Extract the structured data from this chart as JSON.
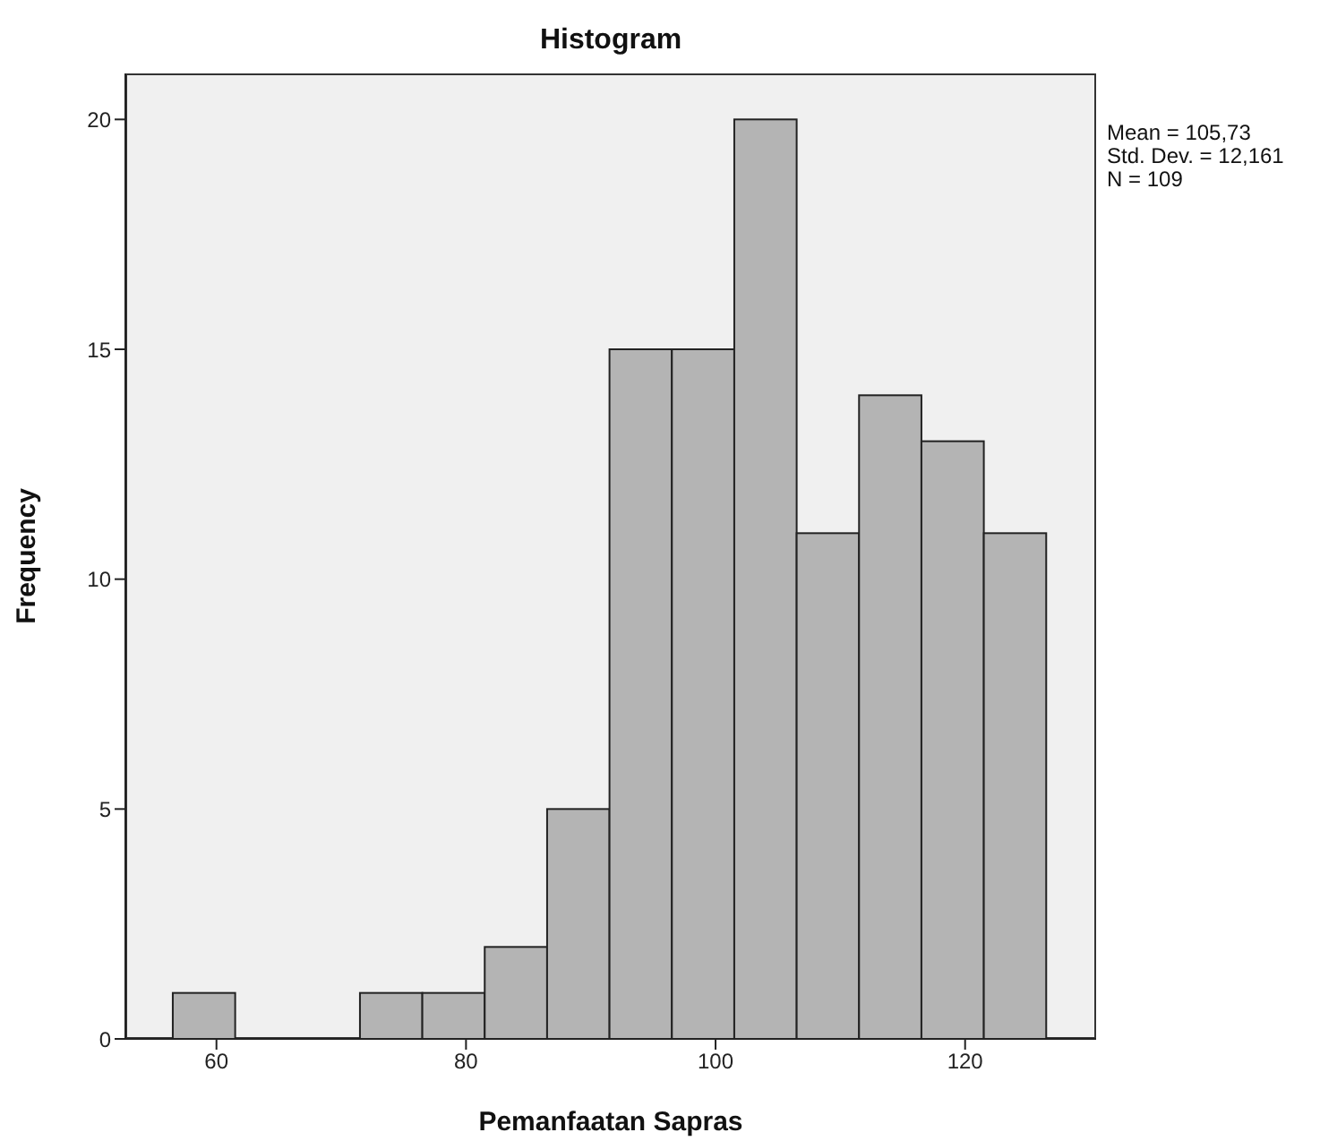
{
  "chart_data": {
    "type": "histogram",
    "title": "Histogram",
    "xlabel": "Pemanfaatan Sapras",
    "ylabel": "Frequency",
    "bins": [
      56.5,
      61.5,
      66.5,
      71.5,
      76.5,
      81.5,
      86.5,
      91.5,
      96.5,
      101.5,
      106.5,
      111.5,
      116.5,
      121.5,
      126.5
    ],
    "values": [
      1,
      0,
      0,
      1,
      1,
      2,
      5,
      15,
      15,
      20,
      11,
      14,
      13,
      11
    ],
    "color": "#b4b4b4",
    "xlim": [
      52.7,
      130.5
    ],
    "xticks": [
      60,
      80,
      100,
      120
    ],
    "ylim": [
      0,
      21
    ],
    "yticks": [
      0,
      5,
      10,
      15,
      20
    ],
    "annotations": [
      "Mean = 105,73",
      "Std. Dev. = 12,161",
      "N = 109"
    ]
  }
}
